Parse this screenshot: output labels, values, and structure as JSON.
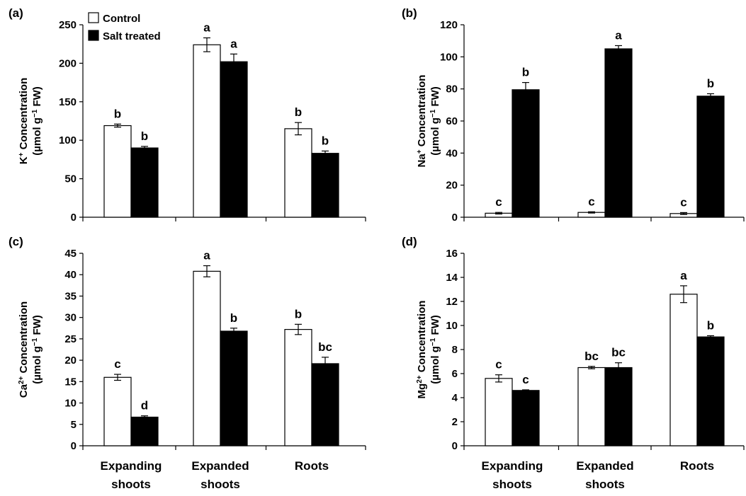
{
  "legend": [
    {
      "label": "Control",
      "color": "#ffffff"
    },
    {
      "label": "Salt treated",
      "color": "#000000"
    }
  ],
  "categories": [
    "Expanding shoots",
    "Expanded shoots",
    "Roots"
  ],
  "category_lines": [
    [
      "Expanding",
      "shoots"
    ],
    [
      "Expanded",
      "shoots"
    ],
    [
      "Roots"
    ]
  ],
  "chart_data": [
    {
      "type": "bar",
      "panel": "(a)",
      "ylabel_line1": "K",
      "ylabel_sup1": "+",
      "ylabel_rest1": " Concentration",
      "ylabel_line2": "(µmol g",
      "ylabel_sup2": "−1",
      "ylabel_rest2": " FW)",
      "ylim": [
        0,
        250
      ],
      "yticks": [
        0,
        50,
        100,
        150,
        200,
        250
      ],
      "categories": [
        "Expanding shoots",
        "Expanded shoots",
        "Roots"
      ],
      "series": [
        {
          "name": "Control",
          "values": [
            119,
            224,
            115
          ],
          "errors": [
            2,
            9,
            8
          ],
          "letters": [
            "b",
            "a",
            "b"
          ]
        },
        {
          "name": "Salt treated",
          "values": [
            90,
            202,
            83
          ],
          "errors": [
            2,
            10,
            3
          ],
          "letters": [
            "b",
            "a",
            "b"
          ]
        }
      ]
    },
    {
      "type": "bar",
      "panel": "(b)",
      "ylabel_line1": "Na",
      "ylabel_sup1": "+",
      "ylabel_rest1": " Concentration",
      "ylabel_line2": "(µmol g",
      "ylabel_sup2": "−1",
      "ylabel_rest2": " FW)",
      "ylim": [
        0,
        120
      ],
      "yticks": [
        0,
        20,
        40,
        60,
        80,
        100,
        120
      ],
      "categories": [
        "Expanding shoots",
        "Expanded shoots",
        "Roots"
      ],
      "series": [
        {
          "name": "Control",
          "values": [
            2.5,
            3,
            2.3
          ],
          "errors": [
            0.5,
            0.4,
            0.6
          ],
          "letters": [
            "c",
            "c",
            "c"
          ]
        },
        {
          "name": "Salt treated",
          "values": [
            79.5,
            105,
            75.5
          ],
          "errors": [
            4.5,
            2,
            1.5
          ],
          "letters": [
            "b",
            "a",
            "b"
          ]
        }
      ]
    },
    {
      "type": "bar",
      "panel": "(c)",
      "ylabel_line1": "Ca",
      "ylabel_sup1": "2+",
      "ylabel_rest1": " Concentration",
      "ylabel_line2": "(µmol g",
      "ylabel_sup2": "−1",
      "ylabel_rest2": " FW)",
      "ylim": [
        0,
        45
      ],
      "yticks": [
        0,
        5,
        10,
        15,
        20,
        25,
        30,
        35,
        40,
        45
      ],
      "categories": [
        "Expanding shoots",
        "Expanded shoots",
        "Roots"
      ],
      "series": [
        {
          "name": "Control",
          "values": [
            16,
            40.8,
            27.2
          ],
          "errors": [
            0.7,
            1.3,
            1.2
          ],
          "letters": [
            "c",
            "a",
            "b"
          ]
        },
        {
          "name": "Salt treated",
          "values": [
            6.7,
            26.8,
            19.2
          ],
          "errors": [
            0.3,
            0.7,
            1.5
          ],
          "letters": [
            "d",
            "b",
            "bc"
          ]
        }
      ]
    },
    {
      "type": "bar",
      "panel": "(d)",
      "ylabel_line1": "Mg",
      "ylabel_sup1": "2+",
      "ylabel_rest1": " Concentration",
      "ylabel_line2": "(µmol g",
      "ylabel_sup2": "−1",
      "ylabel_rest2": " FW)",
      "ylim": [
        0,
        16
      ],
      "yticks": [
        0,
        2,
        4,
        6,
        8,
        10,
        12,
        14,
        16
      ],
      "categories": [
        "Expanding shoots",
        "Expanded shoots",
        "Roots"
      ],
      "series": [
        {
          "name": "Control",
          "values": [
            5.6,
            6.5,
            12.6
          ],
          "errors": [
            0.3,
            0.1,
            0.7
          ],
          "letters": [
            "c",
            "bc",
            "a"
          ]
        },
        {
          "name": "Salt treated",
          "values": [
            4.6,
            6.5,
            9.05
          ],
          "errors": [
            0.05,
            0.4,
            0.1
          ],
          "letters": [
            "c",
            "bc",
            "b"
          ]
        }
      ]
    }
  ]
}
